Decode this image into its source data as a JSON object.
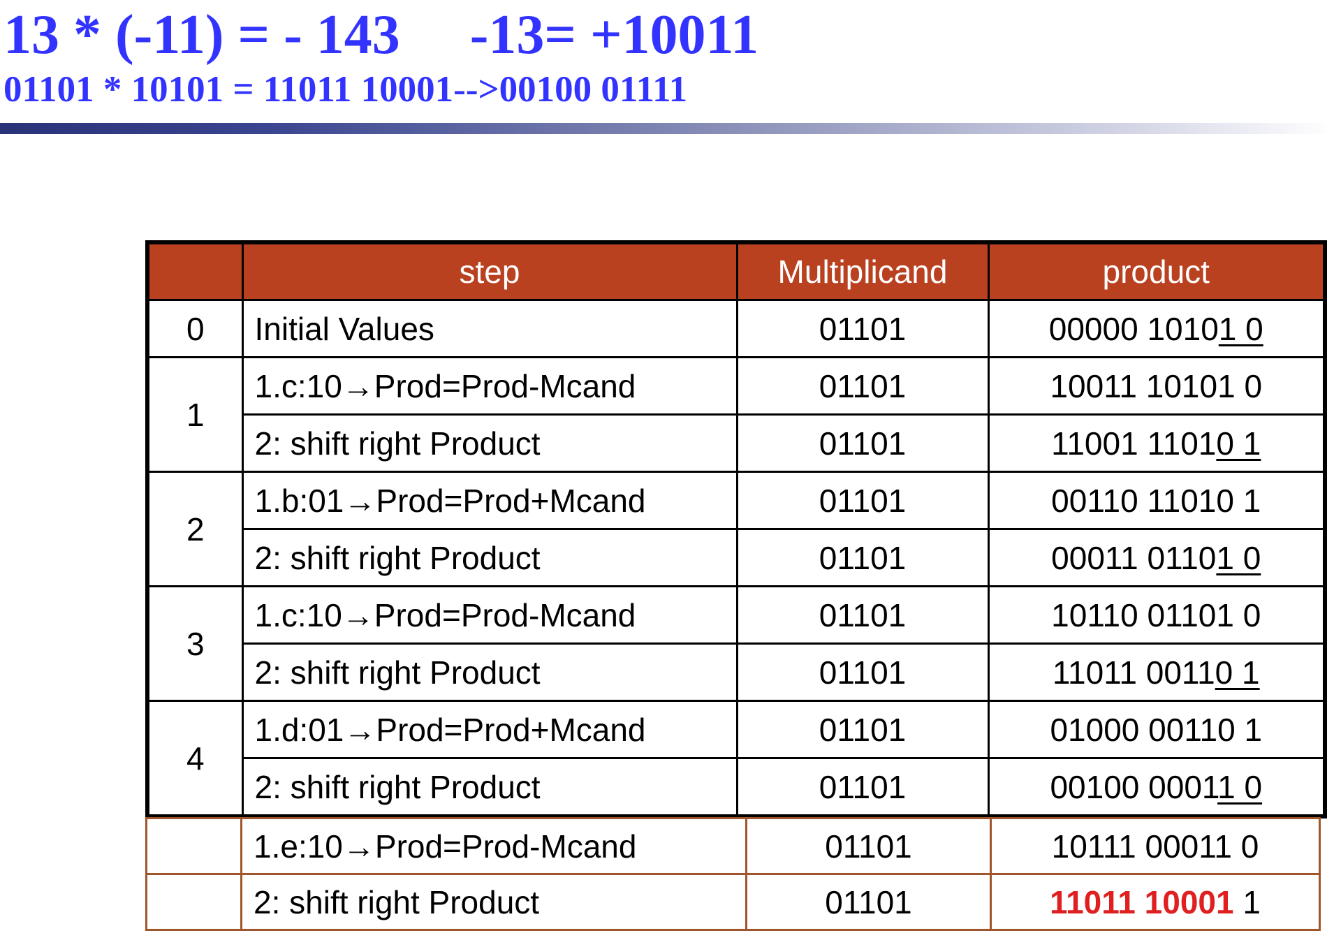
{
  "title": {
    "line1_expr": "13 * (-11) = - 143",
    "line1_neg": "-13= +10011",
    "line2": "01101 * 10101 = 11011 10001-->00100 01111"
  },
  "table": {
    "headers": [
      "",
      "step",
      "Multiplicand",
      "product"
    ],
    "rows": [
      {
        "iter": "0",
        "step": "Initial Values",
        "mcand": "01101",
        "prod_a": "00000 1010",
        "prod_u": "1 0",
        "prod_b": ""
      },
      {
        "iter": "1",
        "step": "1.c:10→Prod=Prod-Mcand",
        "mcand": "01101",
        "prod_a": "10011 10101 0",
        "prod_u": "",
        "prod_b": ""
      },
      {
        "iter": "",
        "step": "2: shift right Product",
        "mcand": "01101",
        "prod_a": "11001 1101",
        "prod_u": "0 1",
        "prod_b": ""
      },
      {
        "iter": "2",
        "step": "1.b:01→Prod=Prod+Mcand",
        "mcand": "01101",
        "prod_a": "00110 11010 1",
        "prod_u": "",
        "prod_b": ""
      },
      {
        "iter": "",
        "step": "2: shift right Product",
        "mcand": "01101",
        "prod_a": "00011 0110",
        "prod_u": "1 0",
        "prod_b": ""
      },
      {
        "iter": "3",
        "step": "1.c:10→Prod=Prod-Mcand",
        "mcand": "01101",
        "prod_a": "10110 01101 0",
        "prod_u": "",
        "prod_b": ""
      },
      {
        "iter": "",
        "step": "2: shift right Product",
        "mcand": "01101",
        "prod_a": "11011 0011",
        "prod_u": "0 1",
        "prod_b": ""
      },
      {
        "iter": "4",
        "step": "1.d:01→Prod=Prod+Mcand",
        "mcand": "01101",
        "prod_a": "01000 00110 1",
        "prod_u": "",
        "prod_b": ""
      },
      {
        "iter": "",
        "step": "2: shift right Product",
        "mcand": "01101",
        "prod_a": "00100 0001",
        "prod_u": "1 0",
        "prod_b": ""
      }
    ]
  },
  "extra": {
    "rows": [
      {
        "step": "1.e:10→Prod=Prod-Mcand",
        "mcand": "01101",
        "prod": "10111 00011 0"
      },
      {
        "step": "2: shift right Product",
        "mcand": "01101",
        "prod_red": "11011 10001",
        "prod_rest": " 1"
      }
    ]
  },
  "colors": {
    "title": "#3333ff",
    "header_bg": "#b94120",
    "header_text": "#ffffff",
    "highlight": "#e02020",
    "extra_border": "#a0552a"
  }
}
